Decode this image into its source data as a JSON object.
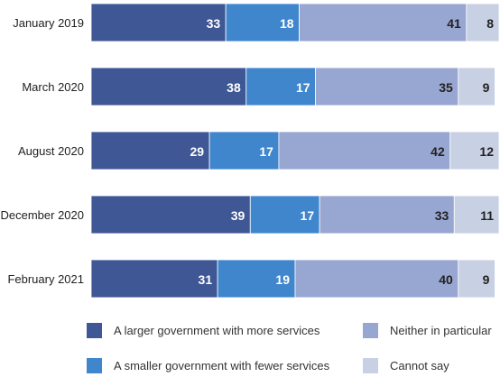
{
  "chart_data": {
    "type": "bar",
    "orientation": "horizontal",
    "stacked": true,
    "categories": [
      "January 2019",
      "March 2020",
      "August 2020",
      "December 2020",
      "February 2021"
    ],
    "series": [
      {
        "name": "A larger government with more services",
        "color": "#3f5795",
        "label_color": "#ffffff",
        "values": [
          33,
          38,
          29,
          39,
          31
        ]
      },
      {
        "name": "A smaller government with fewer services",
        "color": "#3f86cd",
        "label_color": "#ffffff",
        "values": [
          18,
          17,
          17,
          17,
          19
        ]
      },
      {
        "name": "Neither in particular",
        "color": "#98a6d2",
        "label_color": "#222222",
        "values": [
          41,
          35,
          42,
          33,
          40
        ]
      },
      {
        "name": "Cannot say",
        "color": "#c8d0e4",
        "label_color": "#222222",
        "values": [
          8,
          9,
          12,
          11,
          9
        ]
      }
    ],
    "xlim": [
      0,
      100
    ],
    "legend_placement": "bottom",
    "grid": false
  }
}
